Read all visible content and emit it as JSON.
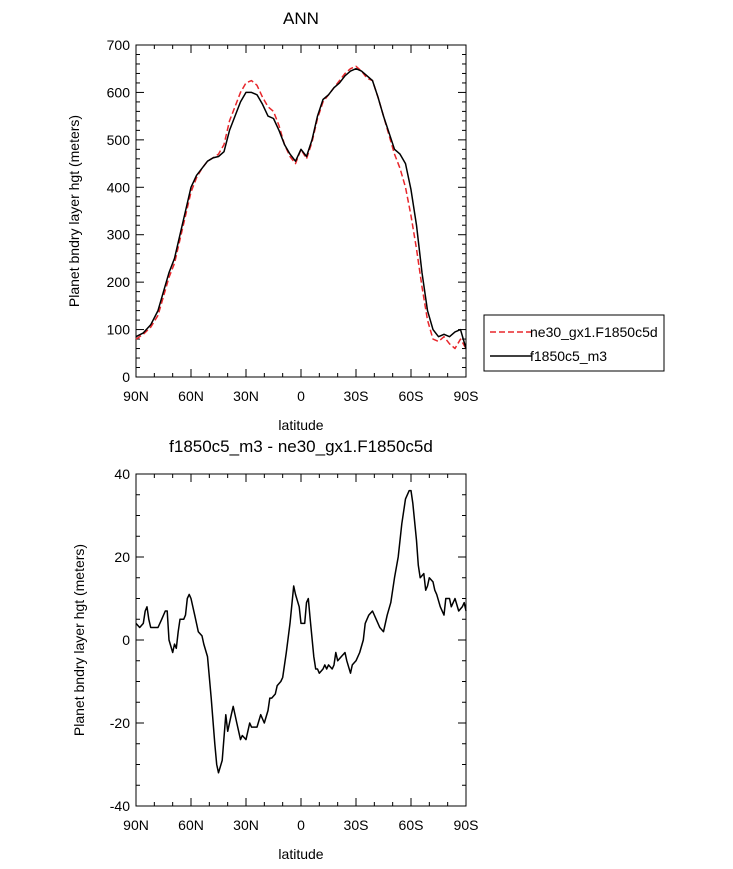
{
  "chart_data": [
    {
      "type": "line",
      "title": "ANN",
      "xlabel": "latitude",
      "ylabel": "Planet bndry layer hgt (meters)",
      "xlim": [
        90,
        -90
      ],
      "ylim": [
        0,
        700
      ],
      "x_ticks": [
        {
          "value": 90,
          "label": "90N"
        },
        {
          "value": 60,
          "label": "60N"
        },
        {
          "value": 30,
          "label": "30N"
        },
        {
          "value": 0,
          "label": "0"
        },
        {
          "value": -30,
          "label": "30S"
        },
        {
          "value": -60,
          "label": "60S"
        },
        {
          "value": -90,
          "label": "90S"
        }
      ],
      "y_ticks": [
        0,
        100,
        200,
        300,
        400,
        500,
        600,
        700
      ],
      "legend_position": "right",
      "series": [
        {
          "name": "ne30_gx1.F1850c5d",
          "color": "#e8262b",
          "dash": "dashed",
          "x": [
            90,
            86,
            82,
            78,
            75,
            72,
            69,
            66,
            63,
            60,
            57,
            54,
            51,
            48,
            45,
            42,
            39,
            36,
            33,
            30,
            27,
            24,
            21,
            18,
            15,
            12,
            9,
            6,
            3,
            0,
            -3,
            -6,
            -9,
            -12,
            -15,
            -18,
            -21,
            -24,
            -27,
            -30,
            -33,
            -36,
            -39,
            -42,
            -45,
            -48,
            -51,
            -54,
            -57,
            -60,
            -63,
            -66,
            -69,
            -72,
            -75,
            -78,
            -81,
            -84,
            -87,
            -90
          ],
          "y": [
            80,
            90,
            105,
            130,
            170,
            210,
            240,
            290,
            340,
            390,
            420,
            440,
            455,
            462,
            470,
            490,
            540,
            570,
            600,
            620,
            625,
            615,
            590,
            570,
            560,
            530,
            490,
            465,
            450,
            480,
            460,
            495,
            545,
            580,
            595,
            610,
            625,
            640,
            650,
            655,
            645,
            630,
            625,
            590,
            550,
            510,
            470,
            440,
            400,
            340,
            270,
            190,
            120,
            80,
            75,
            85,
            70,
            60,
            80,
            60
          ]
        },
        {
          "name": "f1850c5_m3",
          "color": "#000000",
          "dash": "solid",
          "x": [
            90,
            86,
            82,
            78,
            75,
            72,
            69,
            66,
            63,
            60,
            57,
            54,
            51,
            48,
            45,
            42,
            39,
            36,
            33,
            30,
            27,
            24,
            21,
            18,
            15,
            12,
            9,
            6,
            3,
            0,
            -3,
            -6,
            -9,
            -12,
            -15,
            -18,
            -21,
            -24,
            -27,
            -30,
            -33,
            -36,
            -39,
            -42,
            -45,
            -48,
            -51,
            -54,
            -57,
            -60,
            -63,
            -66,
            -69,
            -72,
            -75,
            -78,
            -81,
            -84,
            -87,
            -90
          ],
          "y": [
            85,
            93,
            110,
            140,
            180,
            220,
            250,
            300,
            350,
            400,
            425,
            440,
            455,
            462,
            465,
            475,
            520,
            550,
            580,
            600,
            600,
            595,
            575,
            550,
            545,
            520,
            490,
            470,
            455,
            480,
            465,
            500,
            550,
            585,
            595,
            610,
            620,
            635,
            645,
            650,
            645,
            635,
            625,
            590,
            550,
            515,
            480,
            470,
            450,
            395,
            320,
            220,
            140,
            100,
            85,
            90,
            85,
            95,
            100,
            60
          ]
        }
      ]
    },
    {
      "type": "line",
      "title": "f1850c5_m3 - ne30_gx1.F1850c5d",
      "xlabel": "latitude",
      "ylabel": "Planet bndry layer hgt (meters)",
      "xlim": [
        90,
        -90
      ],
      "ylim": [
        -40,
        40
      ],
      "x_ticks": [
        {
          "value": 90,
          "label": "90N"
        },
        {
          "value": 60,
          "label": "60N"
        },
        {
          "value": 30,
          "label": "30N"
        },
        {
          "value": 0,
          "label": "0"
        },
        {
          "value": -30,
          "label": "30S"
        },
        {
          "value": -60,
          "label": "60S"
        },
        {
          "value": -90,
          "label": "90S"
        }
      ],
      "y_ticks": [
        -40,
        -20,
        0,
        20,
        40
      ],
      "series": [
        {
          "color": "#000000",
          "dash": "solid",
          "x": [
            90,
            88,
            86,
            85,
            84,
            83,
            82,
            80,
            78,
            76,
            74,
            73,
            72,
            70,
            69,
            68,
            67,
            66,
            64,
            63,
            62,
            61,
            60,
            58,
            57,
            56,
            54,
            53,
            51,
            49,
            47,
            46,
            45,
            43,
            41,
            40,
            38,
            37,
            35,
            33,
            32,
            30,
            28,
            27,
            25,
            24,
            22,
            20,
            18,
            17,
            16,
            14,
            13,
            11,
            10,
            8,
            6,
            4,
            3,
            1,
            0,
            -2,
            -3,
            -4,
            -5,
            -7,
            -8,
            -9,
            -10,
            -12,
            -13,
            -14,
            -15,
            -17,
            -18,
            -19,
            -20,
            -22,
            -24,
            -25,
            -27,
            -28,
            -30,
            -32,
            -34,
            -35,
            -37,
            -39,
            -41,
            -43,
            -45,
            -47,
            -49,
            -51,
            -53,
            -55,
            -57,
            -59,
            -60,
            -61,
            -63,
            -64,
            -65,
            -67,
            -68,
            -69,
            -70,
            -72,
            -73,
            -74,
            -76,
            -78,
            -79,
            -81,
            -82,
            -84,
            -86,
            -88,
            -89,
            -90
          ],
          "y": [
            4,
            3,
            4,
            7,
            8,
            5,
            3,
            3,
            3,
            5,
            7,
            7,
            0,
            -3,
            -1,
            -2,
            2,
            5,
            5,
            6,
            10,
            11,
            10,
            6,
            4,
            2,
            1,
            -1,
            -4,
            -14,
            -25,
            -30,
            -32,
            -29,
            -18,
            -22,
            -18,
            -16,
            -20,
            -24,
            -23,
            -24,
            -20,
            -21,
            -21,
            -21,
            -18,
            -20,
            -17,
            -14,
            -14,
            -13,
            -11,
            -10,
            -9,
            -3,
            4,
            13,
            11,
            8,
            4,
            4,
            9,
            10,
            5,
            -4,
            -7,
            -7,
            -8,
            -7,
            -6,
            -7,
            -6,
            -7,
            -6,
            -3,
            -5,
            -4,
            -3,
            -5,
            -8,
            -6,
            -5,
            -3,
            0,
            4,
            6,
            7,
            5,
            3,
            2,
            6,
            9,
            15,
            20,
            28,
            34,
            36,
            36,
            33,
            24,
            18,
            15,
            16,
            12,
            13,
            15,
            14,
            12,
            11,
            8,
            6,
            10,
            10,
            8,
            10,
            7,
            8,
            9,
            7
          ]
        }
      ]
    }
  ]
}
